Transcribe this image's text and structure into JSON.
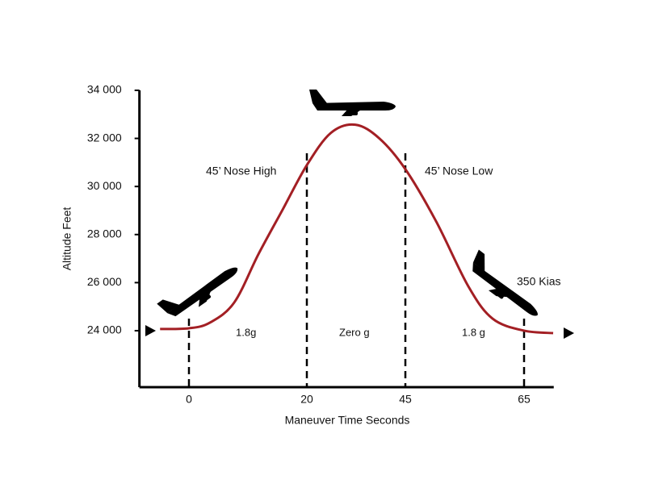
{
  "chart_data": {
    "type": "line",
    "xlabel": "Maneuver Time Seconds",
    "ylabel": "Altitude Feet",
    "x": [
      -4.9,
      0,
      3.6,
      7.7,
      11.8,
      15.9,
      20,
      26.1,
      32.3,
      38.4,
      45,
      50.2,
      55.6,
      59.7,
      65,
      69.9
    ],
    "series": [
      {
        "color": "#a31f24",
        "values": [
          24070,
          24100,
          24340,
          25180,
          27190,
          29040,
          30890,
          32230,
          32570,
          32000,
          30720,
          28540,
          25850,
          24500,
          24000,
          23900
        ]
      }
    ],
    "xlim": [
      -8.4,
      70
    ],
    "xticks": [
      0,
      20,
      45,
      65
    ],
    "ylim": [
      21650,
      34000
    ],
    "yticks": [
      {
        "value": 24000,
        "label": "24 000"
      },
      {
        "value": 26000,
        "label": "26 000"
      },
      {
        "value": 28000,
        "label": "28 000"
      },
      {
        "value": 30000,
        "label": "30 000"
      },
      {
        "value": 32000,
        "label": "32 000"
      },
      {
        "value": 34000,
        "label": "34 000"
      }
    ],
    "annotations": [
      "45’ Nose High",
      "45’ Nose Low",
      "350 Kias",
      "1.8g",
      "Zero g",
      "1.8 g"
    ]
  }
}
